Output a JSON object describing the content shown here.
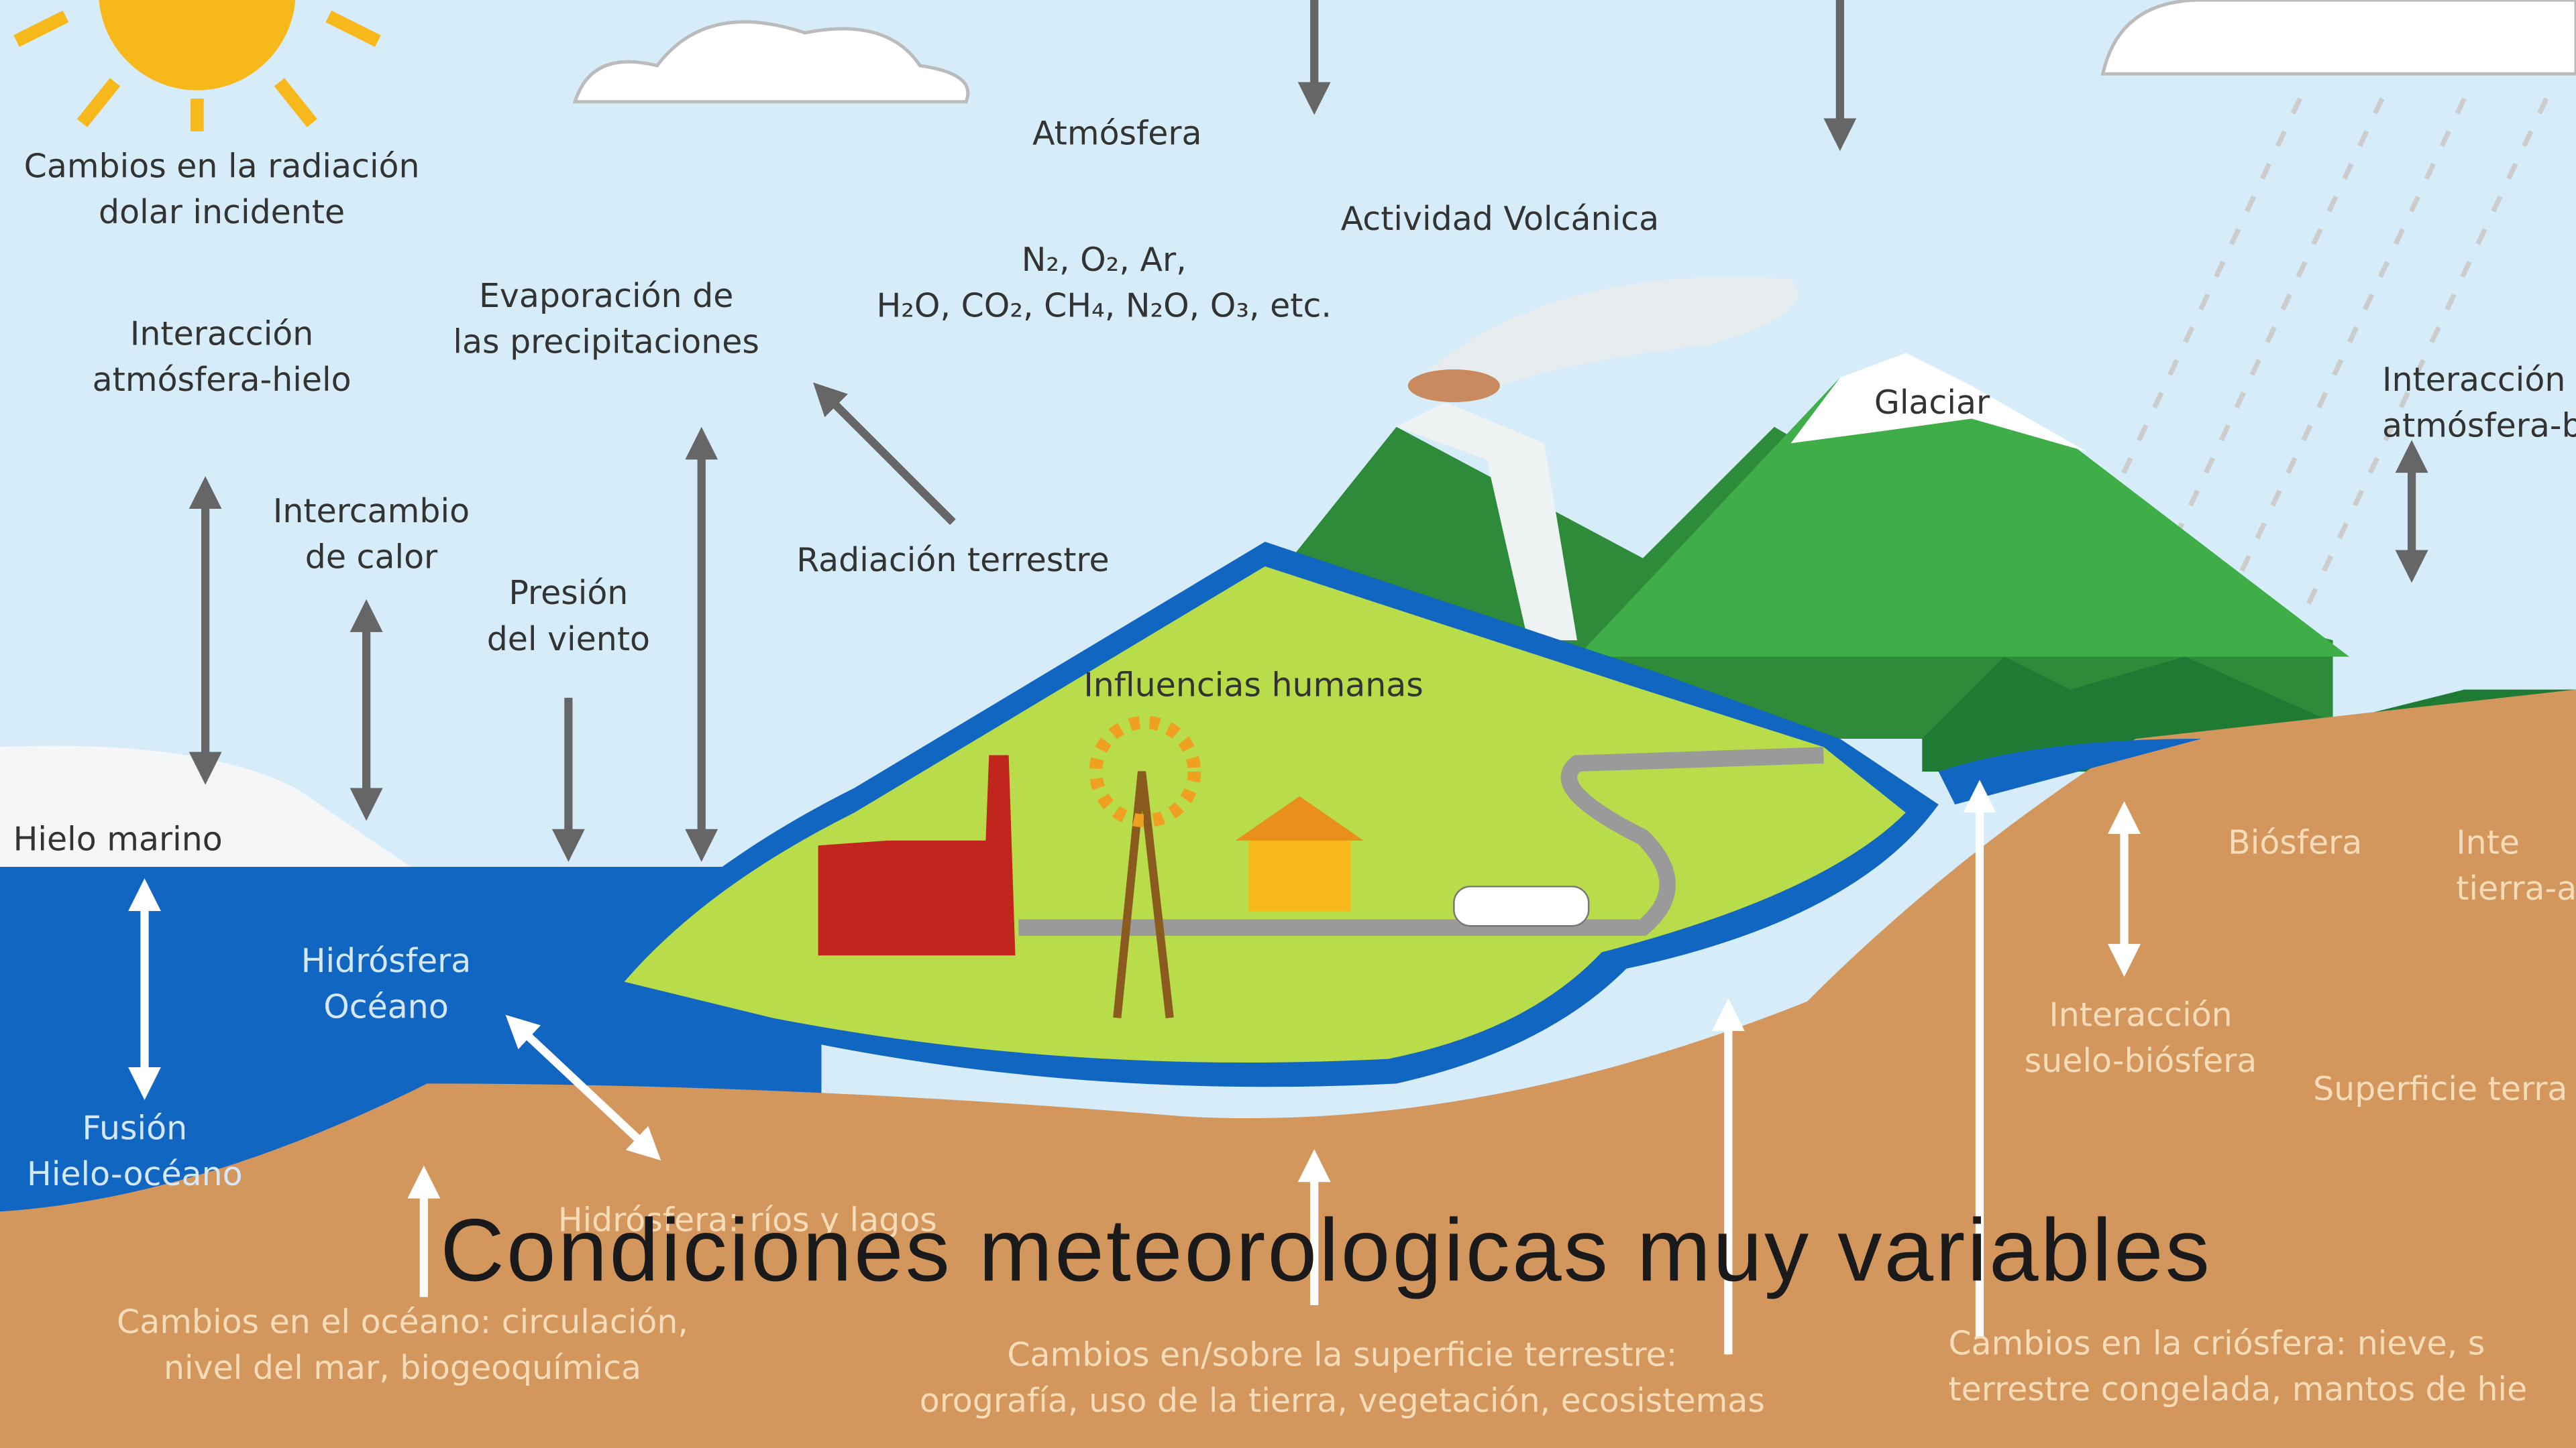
{
  "labels": [
    {
      "lines": [
        "Cambios en la radiación",
        "dolar incidente"
      ]
    },
    {
      "lines": [
        "Atmósfera"
      ]
    },
    {
      "lines": [
        "Actividad Volcánica"
      ]
    },
    {
      "lines": [
        "N₂, O₂, Ar,",
        "H₂O, CO₂, CH₄, N₂O, O₃, etc."
      ]
    },
    {
      "lines": [
        "Evaporación de",
        "las precipitaciones"
      ]
    },
    {
      "lines": [
        "Interacción",
        "atmósfera-hielo"
      ]
    },
    {
      "lines": [
        "Intercambio",
        "de calor"
      ]
    },
    {
      "lines": [
        "Presión",
        "del viento"
      ]
    },
    {
      "lines": [
        "Radiación terrestre"
      ]
    },
    {
      "lines": [
        "Influencias humanas"
      ]
    },
    {
      "lines": [
        "Glaciar"
      ]
    },
    {
      "lines": [
        "Interacción",
        "atmósfera-biós"
      ]
    },
    {
      "lines": [
        "Hielo marino"
      ]
    },
    {
      "lines": [
        "Hidrósfera",
        "Océano"
      ]
    },
    {
      "lines": [
        "Fusión",
        "Hielo-océano"
      ]
    },
    {
      "lines": [
        "Hidrósfera: ríos y lagos"
      ]
    },
    {
      "lines": [
        "Biósfera"
      ]
    },
    {
      "lines": [
        "Inte",
        "tierra-a"
      ]
    },
    {
      "lines": [
        "Interacción",
        "suelo-biósfera"
      ]
    },
    {
      "lines": [
        "Superficie terra"
      ]
    },
    {
      "lines": [
        "Cambios en el océano: circulación,",
        "nivel del mar, biogeoquímica"
      ]
    },
    {
      "lines": [
        "Cambios en/sobre la superficie terrestre:",
        "orografía, uso de la tierra, vegetación, ecosistemas"
      ]
    },
    {
      "lines": [
        "Cambios en la criósfera: nieve, s",
        "terrestre congelada, mantos de hie"
      ]
    }
  ],
  "caption": "Condiciones meteorologicas muy variables"
}
